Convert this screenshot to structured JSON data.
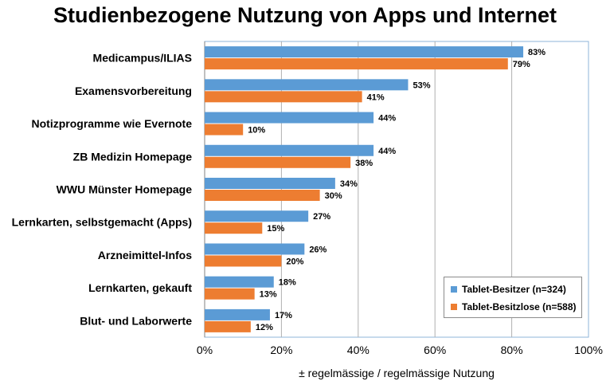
{
  "chart_data": {
    "type": "bar",
    "orientation": "horizontal",
    "title": "Studienbezogene Nutzung von Apps und Internet",
    "xlabel": "± regelmässige / regelmässige Nutzung",
    "ylabel": "",
    "xlim": [
      0,
      100
    ],
    "xticks": [
      "0%",
      "20%",
      "40%",
      "60%",
      "80%",
      "100%"
    ],
    "grid": true,
    "legend_position": "bottom-right",
    "categories": [
      "Medicampus/ILIAS",
      "Examensvorbereitung",
      "Notizprogramme wie Evernote",
      "ZB Medizin Homepage",
      "WWU Münster Homepage",
      "Lernkarten, selbstgemacht (Apps)",
      "Arzneimittel-Infos",
      "Lernkarten, gekauft",
      "Blut- und Laborwerte"
    ],
    "series": [
      {
        "name": "Tablet-Besitzer (n=324)",
        "color": "#5b9bd5",
        "values": [
          83,
          53,
          44,
          44,
          34,
          27,
          26,
          18,
          17
        ]
      },
      {
        "name": "Tablet-Besitzlose (n=588)",
        "color": "#ed7d31",
        "values": [
          79,
          41,
          10,
          38,
          30,
          15,
          20,
          13,
          12
        ]
      }
    ]
  }
}
